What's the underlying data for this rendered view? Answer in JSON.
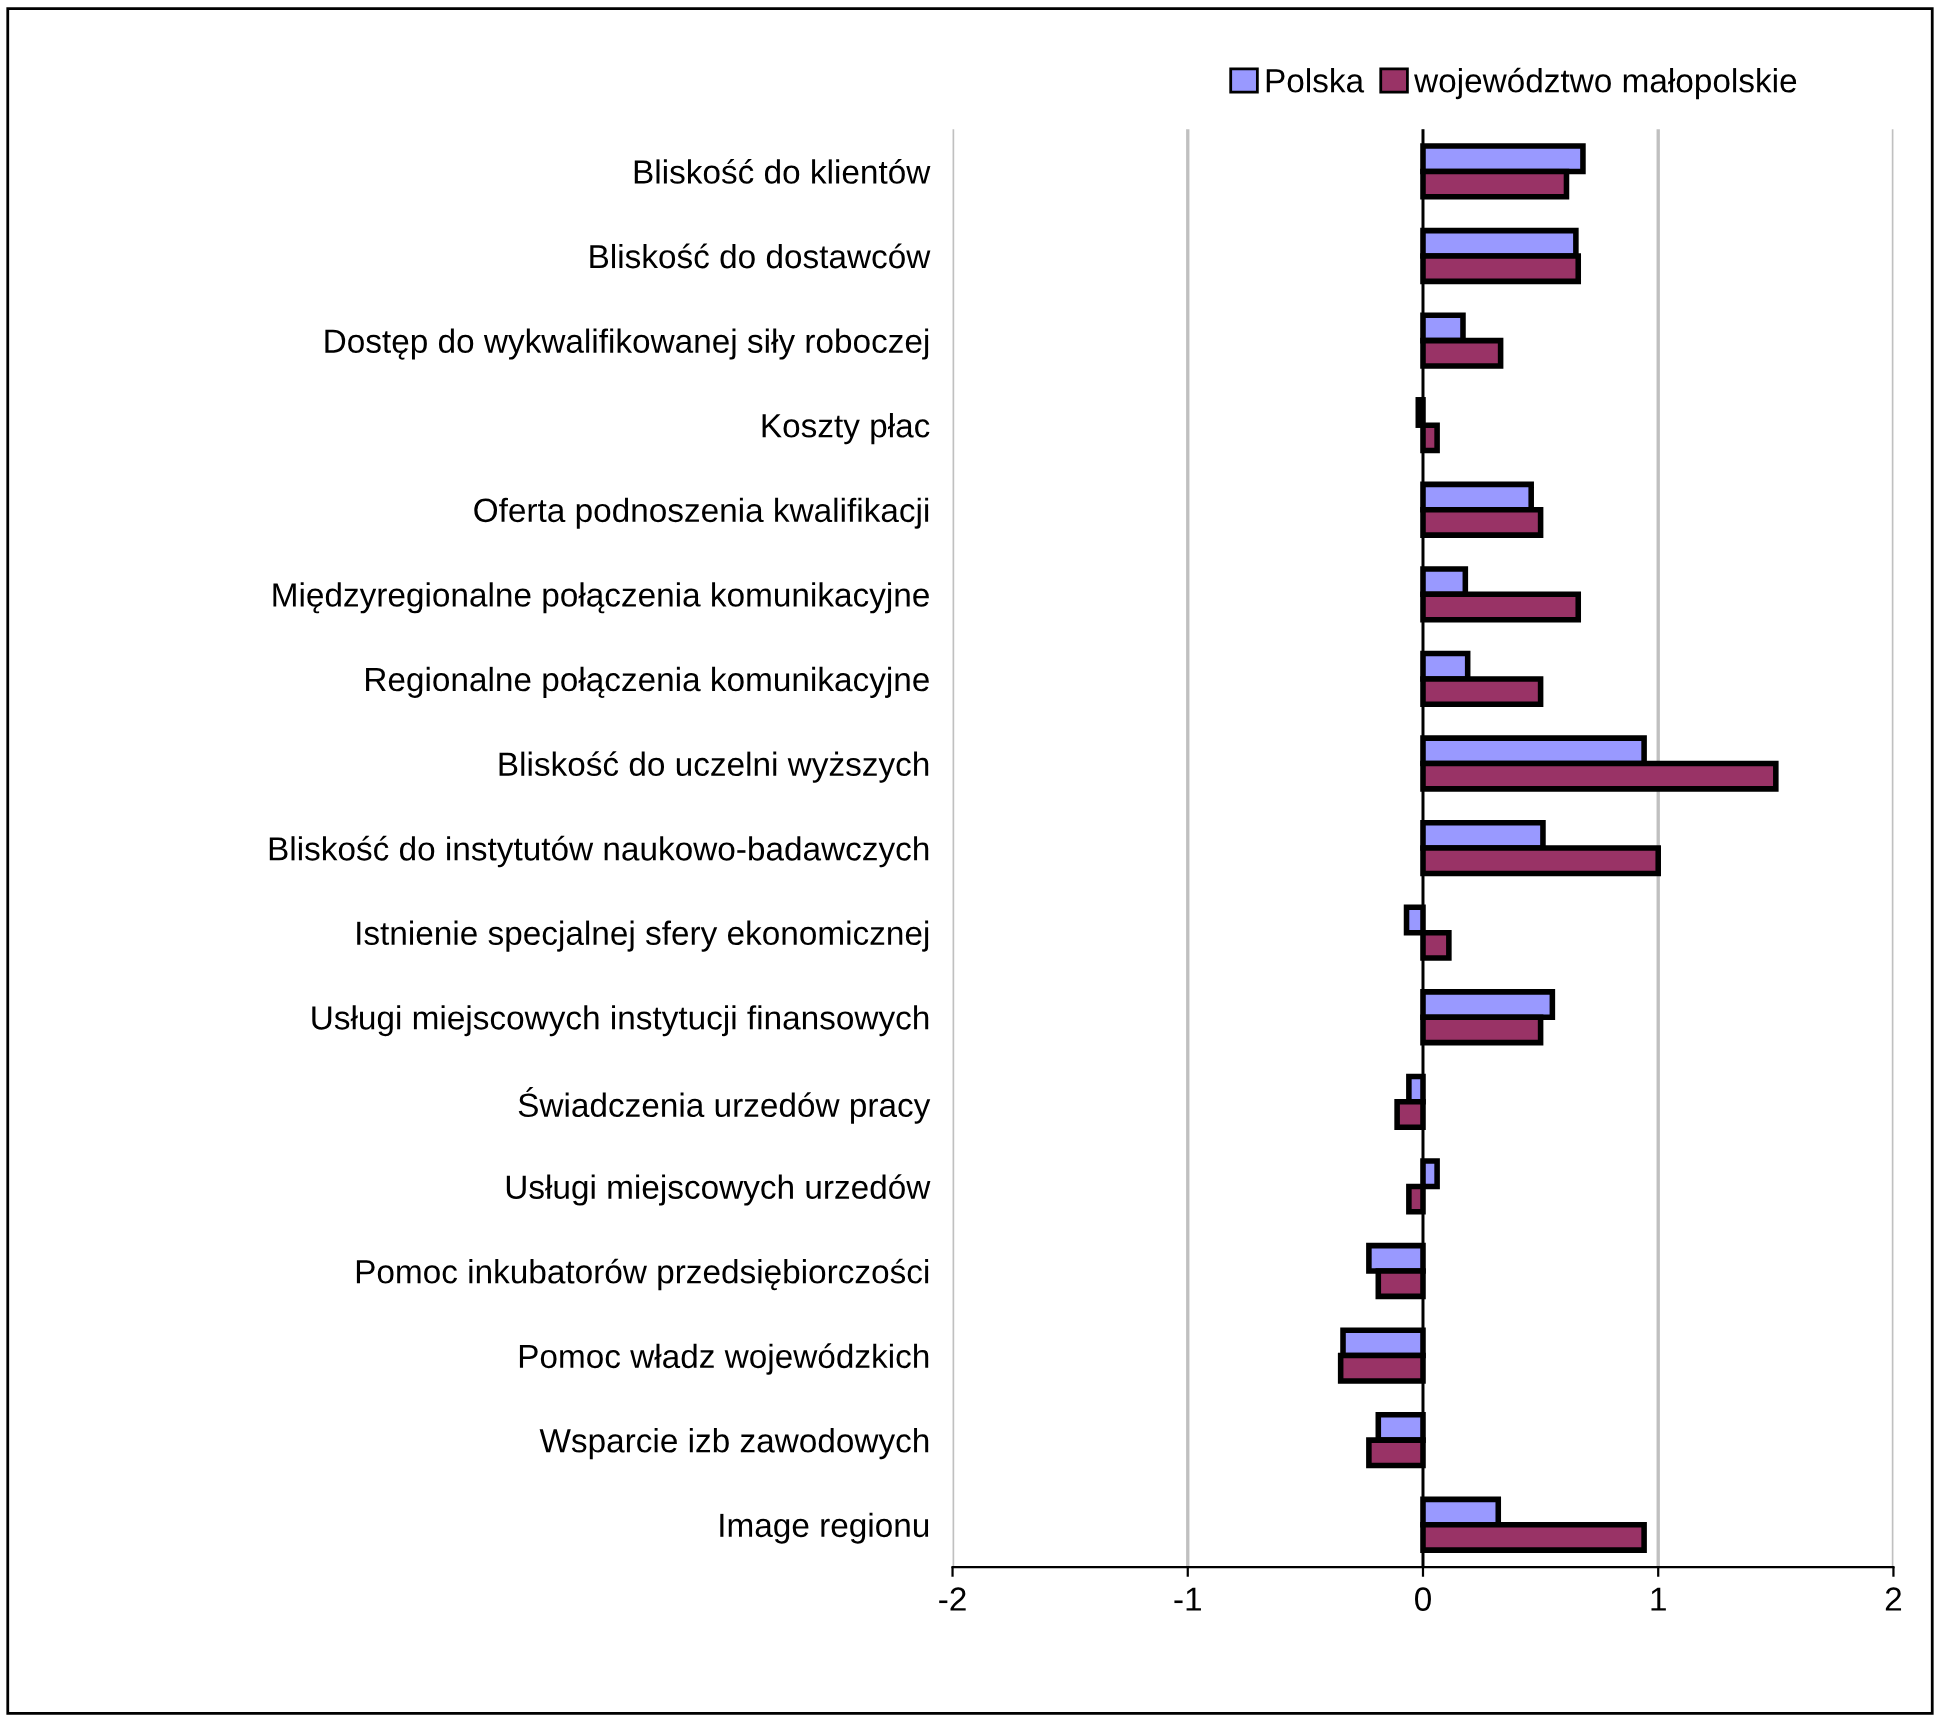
{
  "chart_data": {
    "type": "bar",
    "orientation": "horizontal",
    "categories": [
      "Bliskość do klientów",
      "Bliskość do dostawców",
      "Dostęp do wykwalifikowanej siły roboczej",
      "Koszty płac",
      "Oferta podnoszenia kwalifikacji",
      "Międzyregionalne połączenia komunikacyjne",
      "Regionalne połączenia komunikacyjne",
      "Bliskość do uczelni wyższych",
      "Bliskość do instytutów naukowo-badawczych",
      "Istnienie specjalnej sfery ekonomicznej",
      "Usługi miejscowych instytucji finansowych",
      "Świadczenia urzedów pracy",
      "Usługi miejscowych urzedów",
      "Pomoc inkubatorów przedsiębiorczości",
      "Pomoc władz wojewódzkich",
      "Wsparcie izb zawodowych",
      "Image regionu"
    ],
    "series": [
      {
        "name": "Polska",
        "color": "#9999ff",
        "values": [
          0.68,
          0.65,
          0.17,
          -0.02,
          0.46,
          0.18,
          0.19,
          0.94,
          0.51,
          -0.07,
          0.55,
          -0.06,
          0.06,
          -0.23,
          -0.34,
          -0.19,
          0.32
        ]
      },
      {
        "name": "województwo małopolskie",
        "color": "#993366",
        "values": [
          0.61,
          0.66,
          0.33,
          0.06,
          0.5,
          0.66,
          0.5,
          1.5,
          1.0,
          0.11,
          0.5,
          -0.11,
          -0.06,
          -0.19,
          -0.35,
          -0.23,
          0.94
        ]
      }
    ],
    "xlim": [
      -2,
      2
    ],
    "xticks": [
      -2,
      -1,
      0,
      1,
      2
    ],
    "grid": "x",
    "legend": "top right"
  }
}
